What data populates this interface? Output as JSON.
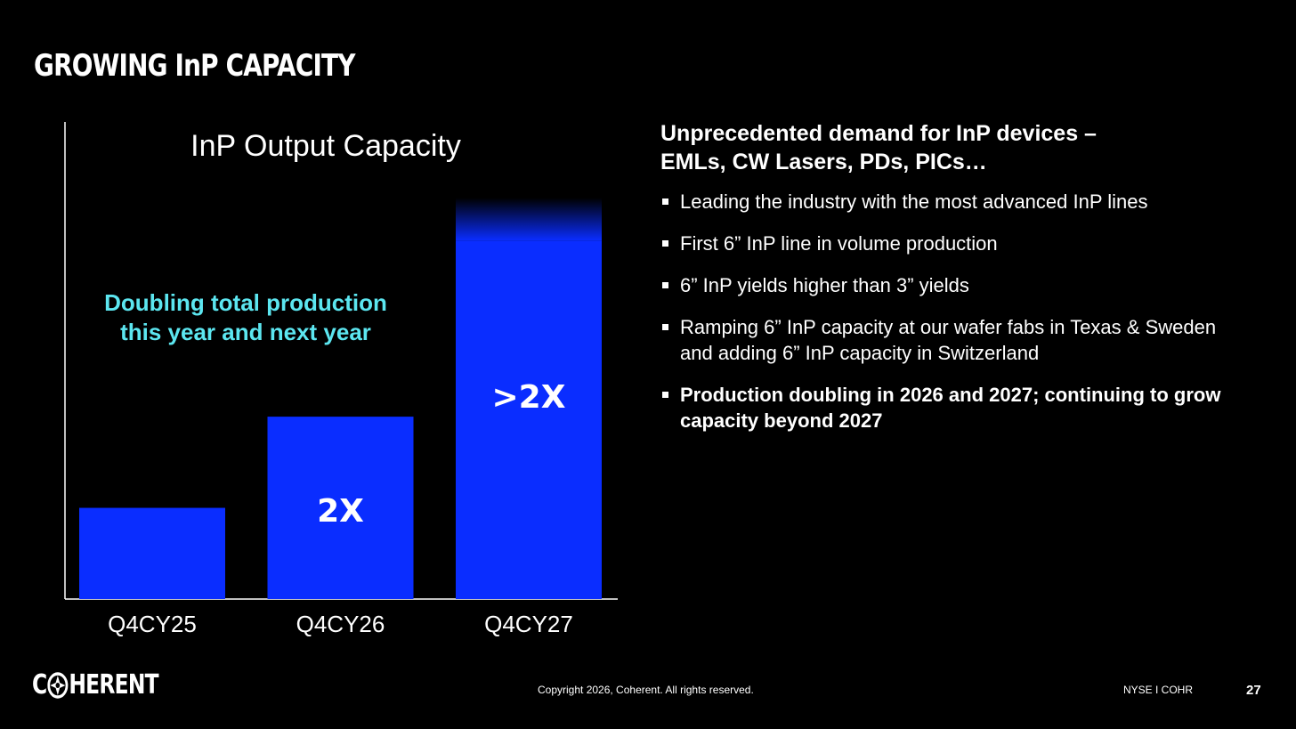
{
  "slide": {
    "title": "GROWING InP CAPACITY",
    "annotation_line1": "Doubling total production",
    "annotation_line2": "this year and next year"
  },
  "chart_data": {
    "type": "bar",
    "title": "InP Output Capacity",
    "categories": [
      "Q4CY25",
      "Q4CY26",
      "Q4CY27"
    ],
    "values": [
      1,
      2,
      4.4
    ],
    "bar_labels": [
      "",
      "2X",
      ">2X"
    ],
    "fade_top": [
      false,
      false,
      true
    ],
    "xlabel": "",
    "ylabel": "",
    "ylim": [
      0,
      4.5
    ],
    "grid": false,
    "bar_color": "#0a2dff"
  },
  "right_panel": {
    "headline_line1": "Unprecedented demand for InP devices –",
    "headline_line2": "EMLs, CW Lasers, PDs, PICs…",
    "bullets": [
      "Leading the industry with the most advanced InP lines",
      "First 6” InP line in volume production",
      "6” InP yields higher than 3” yields",
      "Ramping 6”  InP capacity at our wafer fabs in Texas & Sweden and adding 6” InP capacity in Switzerland",
      "Production doubling in 2026 and 2027; continuing to grow capacity beyond 2027"
    ]
  },
  "footer": {
    "logo_part1": "C",
    "logo_part2": "HERENT",
    "logo_icon": "globe-icon",
    "copyright": "Copyright 2026, Coherent. All rights reserved.",
    "ticker": "NYSE I COHR",
    "page_number": "27"
  },
  "colors": {
    "background": "#000000",
    "accent_cyan": "#5ce6f0",
    "bar_blue": "#0a2dff"
  }
}
